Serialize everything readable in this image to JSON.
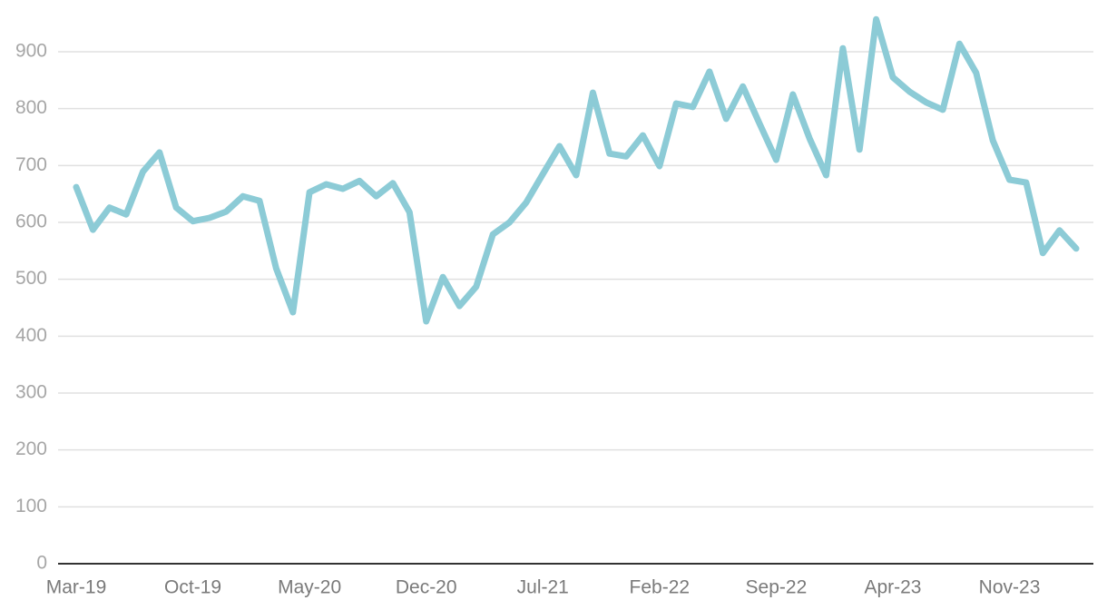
{
  "chart_data": {
    "type": "line",
    "categories": [
      "Mar-19",
      null,
      null,
      null,
      null,
      null,
      null,
      "Oct-19",
      null,
      null,
      null,
      null,
      null,
      null,
      "May-20",
      null,
      null,
      null,
      null,
      null,
      null,
      "Dec-20",
      null,
      null,
      null,
      null,
      null,
      null,
      "Jul-21",
      null,
      null,
      null,
      null,
      null,
      null,
      "Feb-22",
      null,
      null,
      null,
      null,
      null,
      null,
      "Sep-22",
      null,
      null,
      null,
      null,
      null,
      null,
      "Apr-23",
      null,
      null,
      null,
      null,
      null,
      null,
      "Nov-23",
      null,
      null,
      null,
      null
    ],
    "series": [
      {
        "color": "#8ccbd6",
        "values": [
          662,
          587,
          626,
          614,
          689,
          723,
          626,
          602,
          608,
          619,
          646,
          638,
          519,
          442,
          653,
          667,
          659,
          673,
          646,
          669,
          618,
          426,
          504,
          453,
          487,
          579,
          600,
          635,
          685,
          734,
          683,
          828,
          721,
          716,
          753,
          699,
          809,
          803,
          865,
          782,
          839,
          774,
          710,
          825,
          748,
          683,
          906,
          728,
          957,
          855,
          830,
          811,
          798,
          914,
          863,
          744,
          675,
          670,
          546,
          586,
          554
        ]
      }
    ],
    "ylim": [
      0,
      960
    ],
    "yticks": [
      0,
      100,
      200,
      300,
      400,
      500,
      600,
      700,
      800,
      900
    ],
    "grid": true
  }
}
